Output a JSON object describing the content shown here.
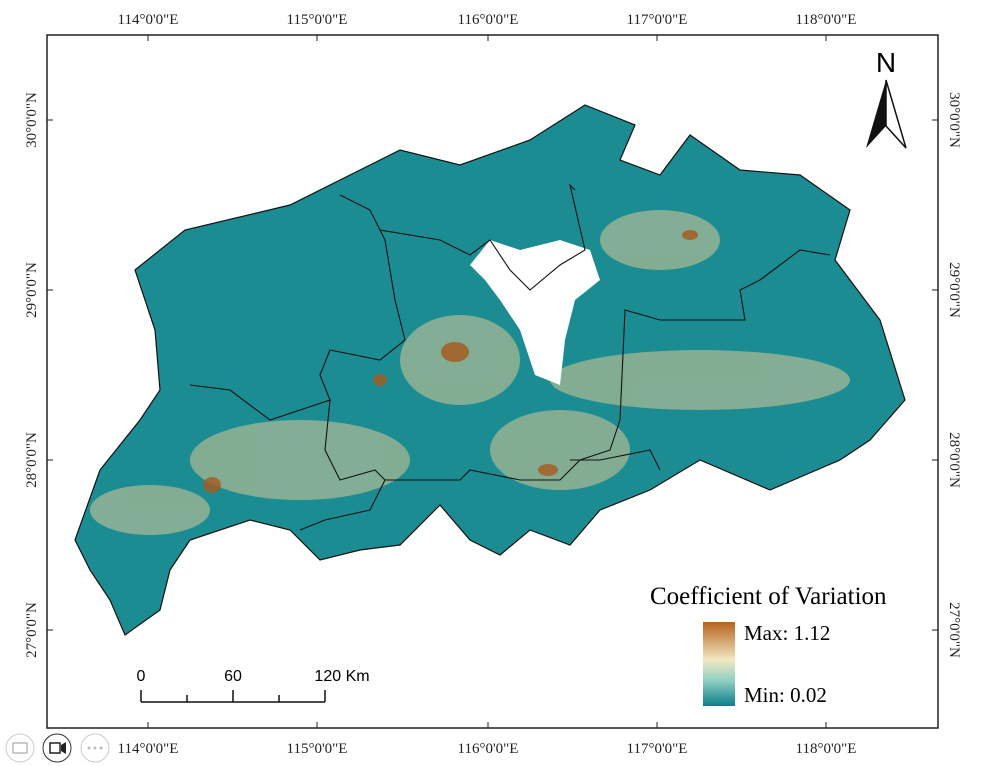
{
  "map": {
    "lon_labels": [
      "114°0'0\"E",
      "115°0'0\"E",
      "116°0'0\"E",
      "117°0'0\"E",
      "118°0'0\"E"
    ],
    "lat_labels": [
      "30°0'0\"N",
      "29°0'0\"N",
      "28°0'0\"N",
      "27°0'0\"N"
    ],
    "north": "N",
    "legend": {
      "title": "Coefficient of Variation",
      "max": "Max: 1.12",
      "min": "Min: 0.02"
    },
    "scale_bar": [
      "0",
      "60",
      "120 Km"
    ]
  }
}
